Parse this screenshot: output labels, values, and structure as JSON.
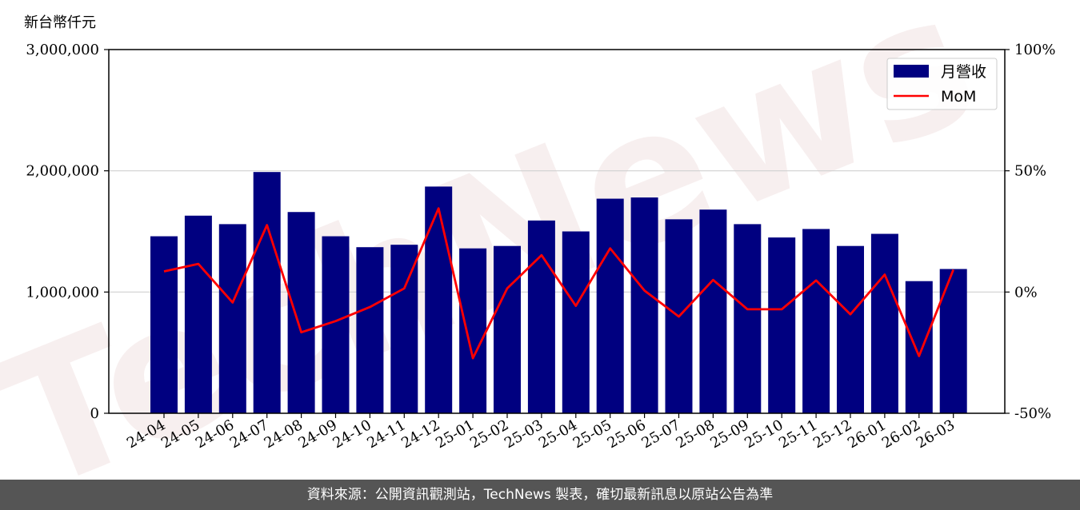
{
  "unit_label": "新台幣仟元",
  "footer_text": "資料來源：公開資訊觀測站，TechNews 製表，確切最新訊息以原站公告為準",
  "watermark_text": "TechNews",
  "colors": {
    "bar": "#000080",
    "line": "#ff0000",
    "footer_bg": "#555555",
    "grid": "#d0d0d0"
  },
  "chart_data": {
    "type": "bar",
    "categories": [
      "24-04",
      "24-05",
      "24-06",
      "24-07",
      "24-08",
      "24-09",
      "24-10",
      "24-11",
      "24-12",
      "25-01",
      "25-02",
      "25-03",
      "25-04",
      "25-05",
      "25-06",
      "25-07",
      "25-08",
      "25-09",
      "25-10",
      "25-11",
      "25-12",
      "26-01",
      "26-02",
      "26-03"
    ],
    "series": [
      {
        "name": "月營收",
        "type": "bar",
        "axis": "left",
        "values": [
          1460000,
          1630000,
          1560000,
          1990000,
          1660000,
          1460000,
          1370000,
          1390000,
          1870000,
          1360000,
          1380000,
          1590000,
          1500000,
          1770000,
          1780000,
          1600000,
          1680000,
          1560000,
          1450000,
          1520000,
          1380000,
          1480000,
          1090000,
          1190000
        ]
      },
      {
        "name": "MoM",
        "type": "line",
        "axis": "right",
        "values": [
          8.5,
          11.6,
          -4.3,
          27.6,
          -16.6,
          -12.0,
          -6.2,
          1.5,
          34.5,
          -27.3,
          1.5,
          15.2,
          -5.7,
          18.0,
          0.6,
          -10.1,
          5.0,
          -7.1,
          -7.1,
          4.8,
          -9.2,
          7.2,
          -26.4,
          9.2
        ]
      }
    ],
    "ylim_left": [
      0,
      3000000
    ],
    "yticks_left": [
      "0",
      "1,000,000",
      "2,000,000",
      "3,000,000"
    ],
    "ylim_right": [
      -50,
      100
    ],
    "yticks_right": [
      "-50%",
      "0%",
      "50%",
      "100%"
    ],
    "grid": "horizontal",
    "legend": {
      "placement": "top-right",
      "entries": [
        "月營收",
        "MoM"
      ]
    }
  }
}
